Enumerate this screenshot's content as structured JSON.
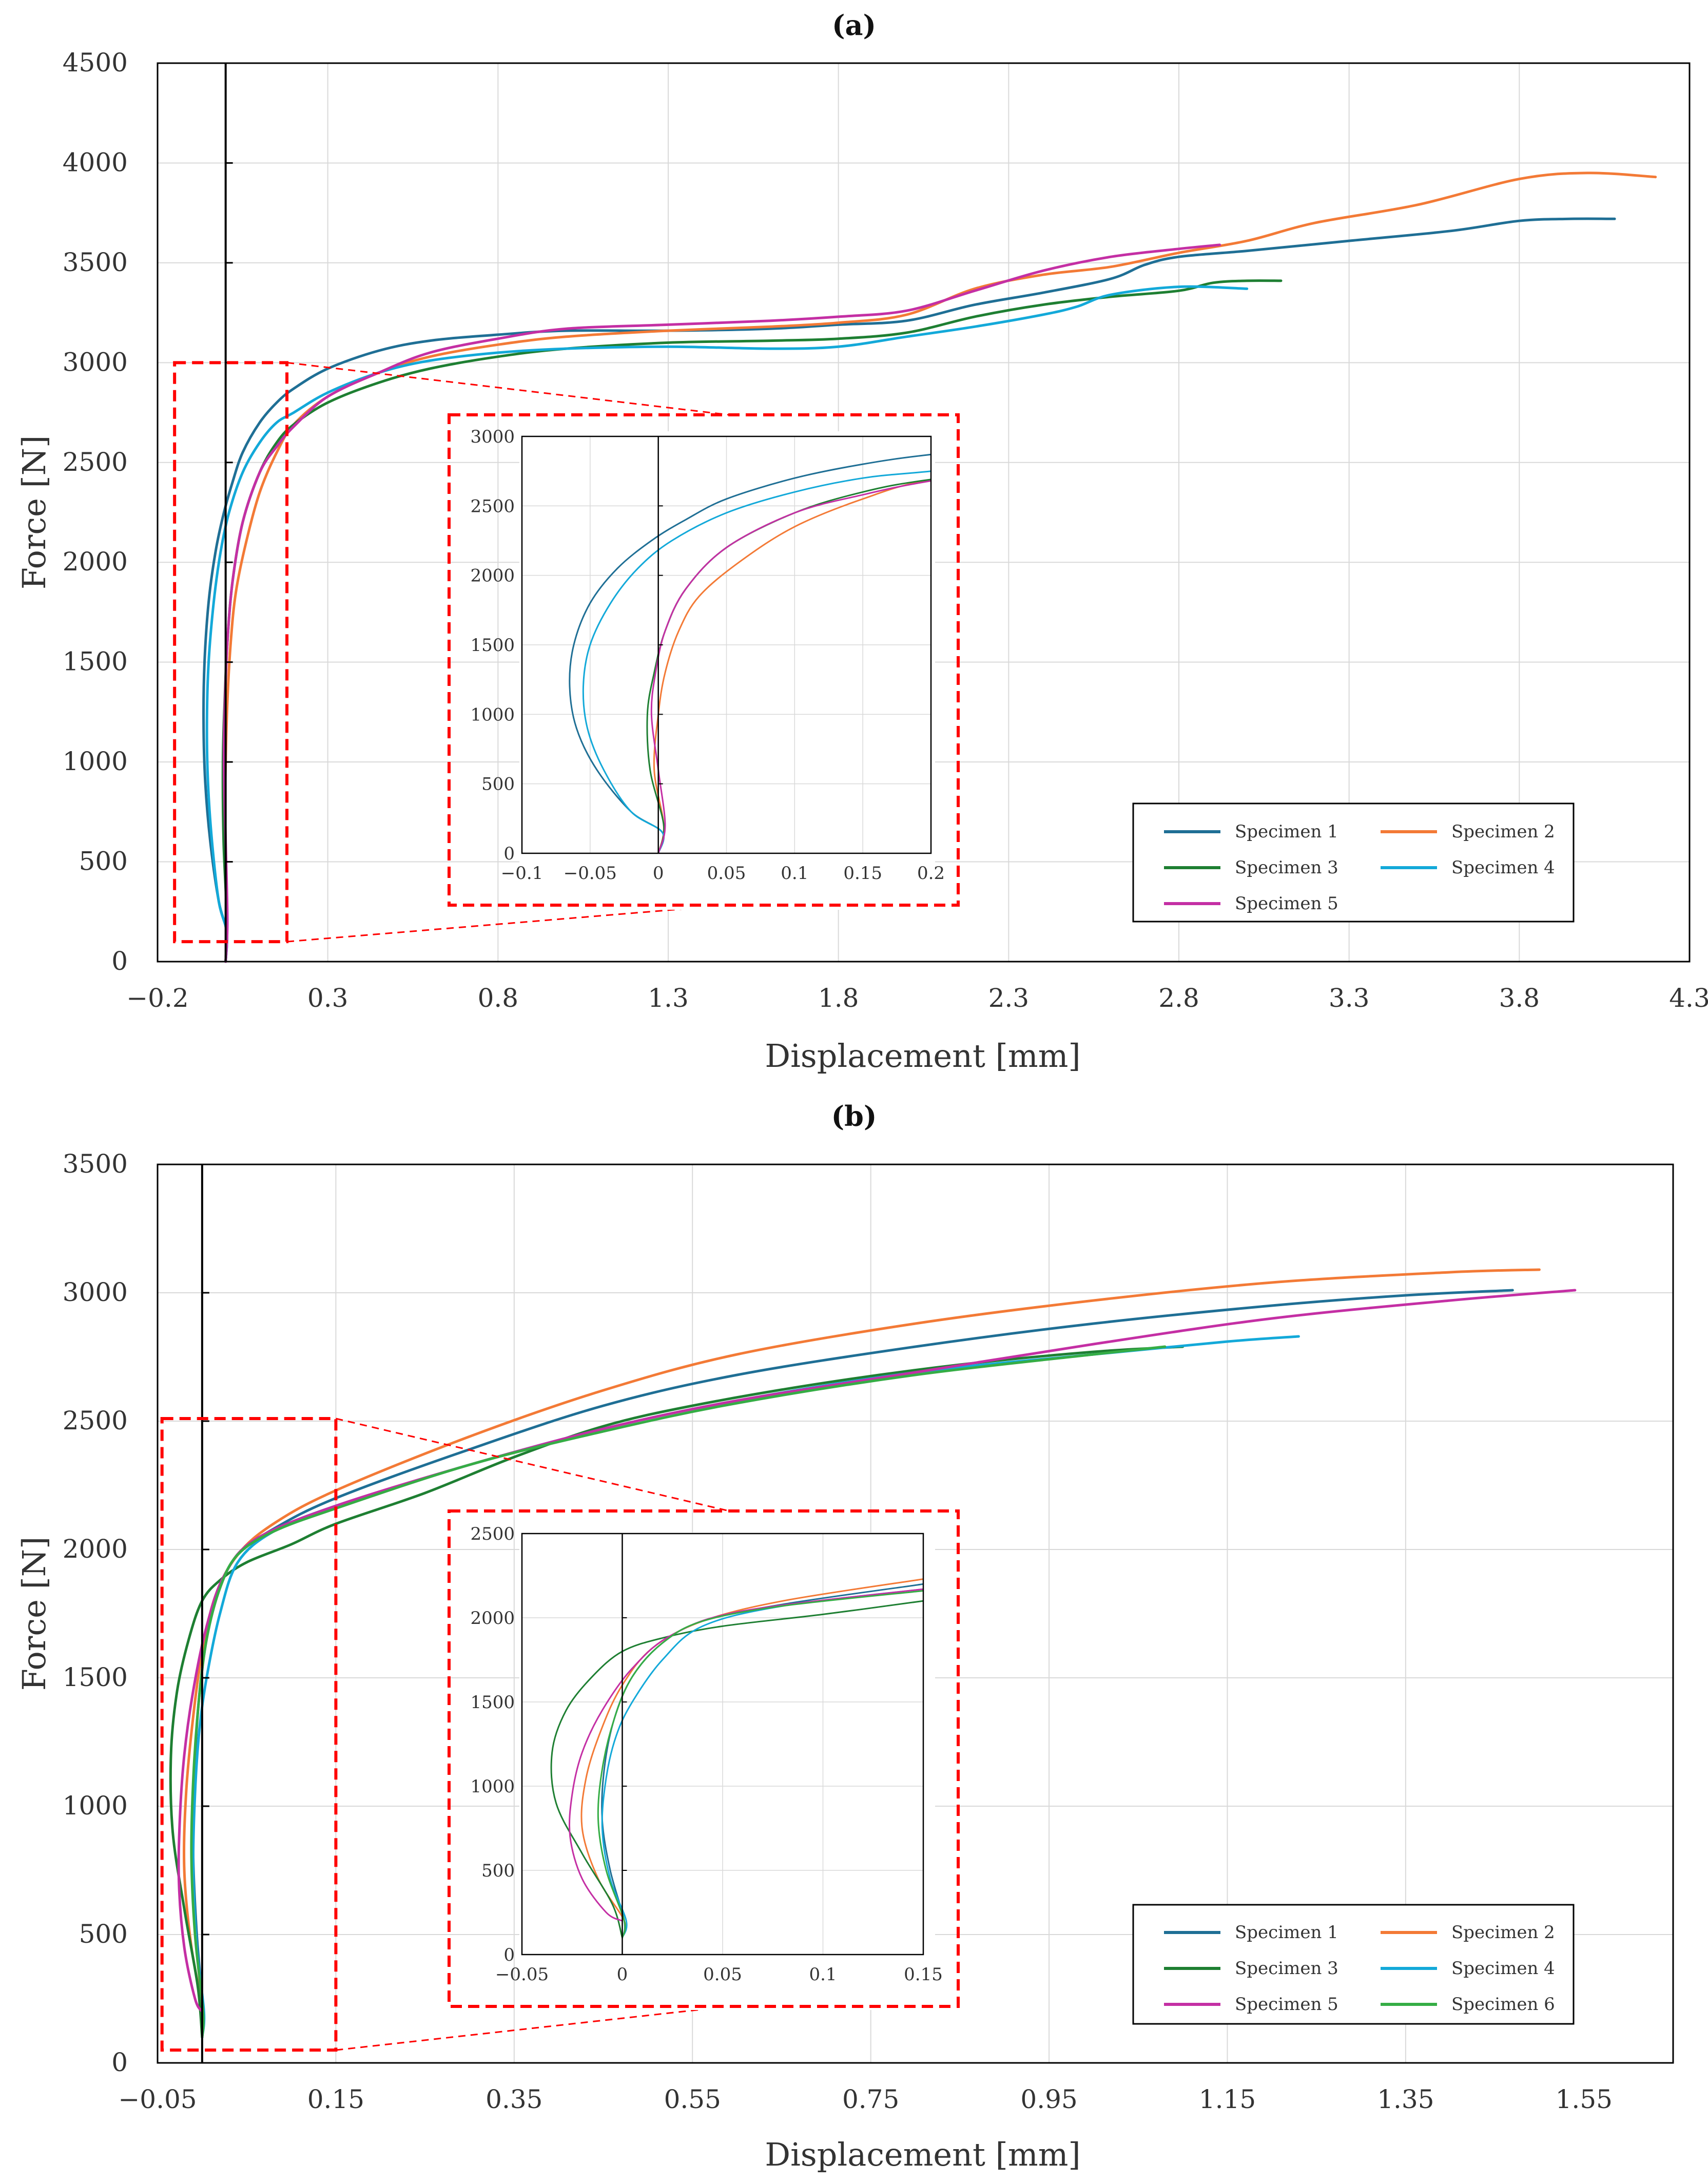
{
  "figure": {
    "panels": [
      "(a)",
      "(b)"
    ]
  },
  "colors": {
    "zoom": "#ff0000",
    "series": [
      "#1f6f95",
      "#f37a36",
      "#1e7f32",
      "#13a9d9",
      "#c42fa4",
      "#35ad45"
    ]
  },
  "chart_data": [
    {
      "id": "a",
      "type": "line",
      "title": "(a)",
      "xlabel": "Displacement [mm]",
      "ylabel": "Force [N]",
      "xlim": [
        -0.2,
        4.3
      ],
      "ylim": [
        0,
        4500
      ],
      "xticks": [
        -0.2,
        0.3,
        0.8,
        1.3,
        1.8,
        2.3,
        2.8,
        3.3,
        3.8,
        4.3
      ],
      "xtick_labels": [
        "−0.2",
        "0.3",
        "0.8",
        "1.3",
        "1.8",
        "2.3",
        "2.8",
        "3.3",
        "3.8",
        "4.3"
      ],
      "yticks": [
        0,
        500,
        1000,
        1500,
        2000,
        2500,
        3000,
        3500,
        4000,
        4500
      ],
      "ytick_labels": [
        "0",
        "500",
        "1000",
        "1500",
        "2000",
        "2500",
        "3000",
        "3500",
        "4000",
        "4500"
      ],
      "grid": true,
      "legend_position": "bottom-right",
      "zoom_region": {
        "xlim": [
          -0.15,
          0.18
        ],
        "ylim": [
          100,
          3000
        ]
      },
      "inset": {
        "xlim": [
          -0.1,
          0.2
        ],
        "ylim": [
          0,
          3000
        ],
        "xticks": [
          -0.1,
          -0.05,
          0,
          0.05,
          0.1,
          0.15,
          0.2
        ],
        "xtick_labels": [
          "−0.1",
          "−0.05",
          "0",
          "0.05",
          "0.1",
          "0.15",
          "0.2"
        ],
        "yticks": [
          0,
          500,
          1000,
          1500,
          2000,
          2500,
          3000
        ],
        "ytick_labels": [
          "0",
          "500",
          "1000",
          "1500",
          "2000",
          "2500",
          "3000"
        ]
      },
      "series": [
        {
          "name": "Specimen 1",
          "color": "#1f6f95",
          "x": [
            0,
            0.003,
            -0.02,
            -0.045,
            -0.06,
            -0.065,
            -0.062,
            -0.05,
            -0.03,
            -0.005,
            0.02,
            0.05,
            0.1,
            0.15,
            0.2,
            0.3,
            0.45,
            0.6,
            0.8,
            1.0,
            1.3,
            1.6,
            1.8,
            2.0,
            2.2,
            2.4,
            2.6,
            2.7,
            2.8,
            3.0,
            3.3,
            3.6,
            3.8,
            3.95,
            4.08
          ],
          "y": [
            0,
            150,
            300,
            600,
            900,
            1200,
            1500,
            1800,
            2050,
            2250,
            2400,
            2550,
            2700,
            2800,
            2870,
            2970,
            3060,
            3110,
            3140,
            3160,
            3160,
            3170,
            3190,
            3210,
            3290,
            3350,
            3420,
            3490,
            3530,
            3560,
            3610,
            3660,
            3710,
            3720,
            3720
          ]
        },
        {
          "name": "Specimen 2",
          "color": "#f37a36",
          "x": [
            0,
            0.004,
            -0.003,
            0.0,
            0.005,
            0.015,
            0.03,
            0.06,
            0.1,
            0.15,
            0.2,
            0.3,
            0.45,
            0.6,
            0.8,
            1.0,
            1.3,
            1.6,
            1.8,
            2.0,
            2.2,
            2.4,
            2.6,
            2.8,
            3.0,
            3.2,
            3.5,
            3.8,
            4.0,
            4.2
          ],
          "y": [
            0,
            200,
            600,
            1000,
            1300,
            1600,
            1850,
            2100,
            2350,
            2550,
            2690,
            2830,
            2950,
            3030,
            3090,
            3130,
            3160,
            3180,
            3200,
            3240,
            3370,
            3440,
            3480,
            3550,
            3610,
            3700,
            3790,
            3920,
            3950,
            3930
          ]
        },
        {
          "name": "Specimen 3",
          "color": "#1e7f32",
          "x": [
            0,
            0.004,
            -0.006,
            -0.008,
            -0.003,
            0.005,
            0.02,
            0.05,
            0.1,
            0.15,
            0.2,
            0.3,
            0.45,
            0.6,
            0.8,
            1.0,
            1.3,
            1.6,
            1.8,
            2.0,
            2.2,
            2.4,
            2.6,
            2.8,
            2.9,
            3.0,
            3.1
          ],
          "y": [
            0,
            200,
            600,
            1000,
            1300,
            1600,
            1900,
            2200,
            2450,
            2600,
            2690,
            2800,
            2900,
            2970,
            3030,
            3070,
            3100,
            3110,
            3120,
            3150,
            3230,
            3290,
            3330,
            3360,
            3400,
            3410,
            3410
          ]
        },
        {
          "name": "Specimen 4",
          "color": "#13a9d9",
          "x": [
            0,
            0.003,
            -0.02,
            -0.04,
            -0.052,
            -0.055,
            -0.05,
            -0.035,
            -0.015,
            0.01,
            0.05,
            0.1,
            0.15,
            0.2,
            0.3,
            0.45,
            0.6,
            0.8,
            1.0,
            1.3,
            1.6,
            1.8,
            2.0,
            2.2,
            2.4,
            2.5,
            2.6,
            2.8,
            3.0
          ],
          "y": [
            0,
            150,
            300,
            600,
            900,
            1200,
            1500,
            1800,
            2050,
            2250,
            2450,
            2600,
            2700,
            2750,
            2850,
            2950,
            3010,
            3050,
            3070,
            3080,
            3070,
            3080,
            3130,
            3180,
            3240,
            3280,
            3340,
            3380,
            3370
          ]
        },
        {
          "name": "Specimen 5",
          "color": "#c42fa4",
          "x": [
            0,
            0.005,
            0.0,
            -0.005,
            -0.002,
            0.005,
            0.02,
            0.05,
            0.1,
            0.15,
            0.2,
            0.3,
            0.45,
            0.6,
            0.8,
            1.0,
            1.3,
            1.6,
            1.8,
            2.0,
            2.2,
            2.4,
            2.6,
            2.8,
            2.92
          ],
          "y": [
            0,
            200,
            600,
            1000,
            1300,
            1600,
            1900,
            2200,
            2450,
            2580,
            2680,
            2830,
            2950,
            3050,
            3120,
            3170,
            3190,
            3210,
            3230,
            3260,
            3360,
            3460,
            3530,
            3570,
            3590
          ]
        }
      ]
    },
    {
      "id": "b",
      "type": "line",
      "title": "(b)",
      "xlabel": "Displacement [mm]",
      "ylabel": "Force [N]",
      "xlim": [
        -0.05,
        1.65
      ],
      "ylim": [
        0,
        3500
      ],
      "xticks": [
        -0.05,
        0.15,
        0.35,
        0.55,
        0.75,
        0.95,
        1.15,
        1.35,
        1.55
      ],
      "xtick_labels": [
        "−0.05",
        "0.15",
        "0.35",
        "0.55",
        "0.75",
        "0.95",
        "1.15",
        "1.35",
        "1.55"
      ],
      "yticks": [
        0,
        500,
        1000,
        1500,
        2000,
        2500,
        3000,
        3500
      ],
      "ytick_labels": [
        "0",
        "500",
        "1000",
        "1500",
        "2000",
        "2500",
        "3000",
        "3500"
      ],
      "grid": true,
      "legend_position": "bottom-right",
      "zoom_region": {
        "xlim": [
          -0.045,
          0.15
        ],
        "ylim": [
          50,
          2510
        ]
      },
      "inset": {
        "xlim": [
          -0.05,
          0.15
        ],
        "ylim": [
          0,
          2500
        ],
        "xticks": [
          -0.05,
          0,
          0.05,
          0.1,
          0.15
        ],
        "xtick_labels": [
          "−0.05",
          "0",
          "0.05",
          "0.1",
          "0.15"
        ],
        "yticks": [
          0,
          500,
          1000,
          1500,
          2000,
          2500
        ],
        "ytick_labels": [
          "0",
          "500",
          "1000",
          "1500",
          "2000",
          "2500"
        ]
      },
      "series": [
        {
          "name": "Specimen 1",
          "color": "#1f6f95",
          "x": [
            0,
            0.001,
            -0.006,
            -0.01,
            -0.009,
            -0.004,
            0.005,
            0.02,
            0.04,
            0.08,
            0.15,
            0.3,
            0.45,
            0.6,
            0.8,
            1.0,
            1.2,
            1.35,
            1.47
          ],
          "y": [
            100,
            200,
            500,
            800,
            1100,
            1400,
            1650,
            1850,
            1980,
            2080,
            2200,
            2390,
            2560,
            2680,
            2790,
            2880,
            2950,
            2990,
            3010
          ]
        },
        {
          "name": "Specimen 2",
          "color": "#f37a36",
          "x": [
            0,
            0.001,
            -0.012,
            -0.02,
            -0.018,
            -0.01,
            0.0,
            0.015,
            0.04,
            0.08,
            0.15,
            0.3,
            0.45,
            0.6,
            0.8,
            1.0,
            1.2,
            1.4,
            1.5
          ],
          "y": [
            100,
            200,
            450,
            750,
            1050,
            1350,
            1600,
            1820,
            1980,
            2100,
            2230,
            2440,
            2620,
            2760,
            2880,
            2970,
            3040,
            3080,
            3090
          ]
        },
        {
          "name": "Specimen 3",
          "color": "#1e7f32",
          "x": [
            0,
            -0.005,
            -0.02,
            -0.033,
            -0.035,
            -0.028,
            -0.015,
            0.0,
            0.02,
            0.05,
            0.1,
            0.15,
            0.25,
            0.35,
            0.45,
            0.55,
            0.7,
            0.85,
            1.0,
            1.1
          ],
          "y": [
            100,
            300,
            600,
            900,
            1200,
            1450,
            1650,
            1800,
            1880,
            1950,
            2020,
            2100,
            2220,
            2360,
            2480,
            2560,
            2650,
            2720,
            2770,
            2790
          ]
        },
        {
          "name": "Specimen 4",
          "color": "#13a9d9",
          "x": [
            0,
            0.002,
            -0.006,
            -0.01,
            -0.008,
            -0.003,
            0.005,
            0.02,
            0.04,
            0.08,
            0.15,
            0.3,
            0.45,
            0.6,
            0.8,
            1.0,
            1.15,
            1.23
          ],
          "y": [
            100,
            200,
            450,
            750,
            1050,
            1300,
            1500,
            1750,
            1950,
            2070,
            2170,
            2330,
            2470,
            2580,
            2690,
            2760,
            2810,
            2830
          ]
        },
        {
          "name": "Specimen 5",
          "color": "#c42fa4",
          "x": [
            0,
            -0.008,
            -0.02,
            -0.026,
            -0.025,
            -0.02,
            -0.01,
            0.005,
            0.025,
            0.06,
            0.15,
            0.3,
            0.45,
            0.6,
            0.8,
            1.0,
            1.2,
            1.4,
            1.54
          ],
          "y": [
            200,
            250,
            450,
            700,
            950,
            1200,
            1450,
            1700,
            1900,
            2040,
            2170,
            2330,
            2470,
            2580,
            2690,
            2800,
            2900,
            2970,
            3010
          ]
        },
        {
          "name": "Specimen 6",
          "color": "#35ad45",
          "x": [
            0,
            0.001,
            -0.008,
            -0.012,
            -0.01,
            -0.004,
            0.005,
            0.02,
            0.04,
            0.08,
            0.15,
            0.3,
            0.45,
            0.6,
            0.8,
            1.0,
            1.08
          ],
          "y": [
            100,
            200,
            500,
            800,
            1100,
            1400,
            1650,
            1850,
            1980,
            2070,
            2160,
            2330,
            2460,
            2570,
            2680,
            2760,
            2790
          ]
        }
      ]
    }
  ]
}
